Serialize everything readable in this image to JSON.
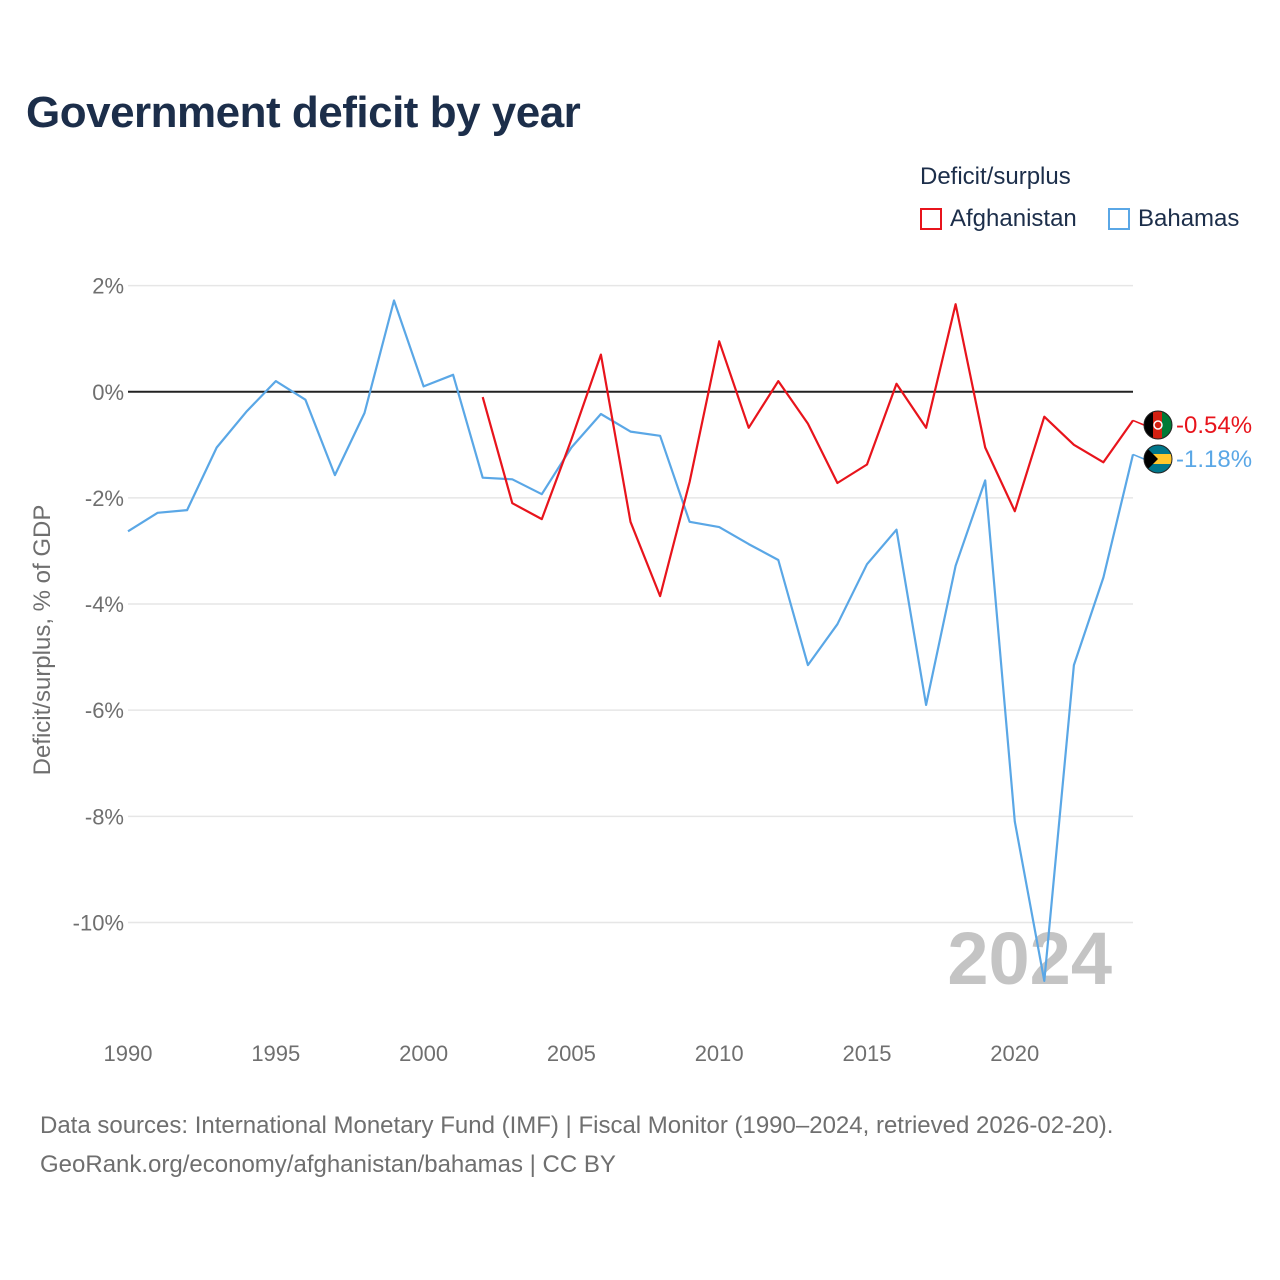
{
  "title": "Government deficit by year",
  "legend": {
    "title": "Deficit/surplus",
    "items": [
      {
        "label": "Afghanistan",
        "color": "#e8141c"
      },
      {
        "label": "Bahamas",
        "color": "#5aa7e6"
      }
    ]
  },
  "year_watermark": "2024",
  "footer": {
    "line1": "Data sources: International Monetary Fund (IMF) | Fiscal Monitor (1990–2024, retrieved 2026-02-20).",
    "line2": "GeoRank.org/economy/afghanistan/bahamas | CC BY"
  },
  "chart_data": {
    "type": "line",
    "title": "Government deficit by year",
    "xlabel": "",
    "ylabel": "Deficit/surplus, % of GDP",
    "xlim": [
      1990,
      2024
    ],
    "ylim": [
      -11.8,
      2.2
    ],
    "x_ticks": [
      1990,
      1995,
      2000,
      2005,
      2010,
      2015,
      2020
    ],
    "x_tick_labels": [
      "1990",
      "1995",
      "2000",
      "2005",
      "2010",
      "2015",
      "2020"
    ],
    "y_ticks": [
      2,
      0,
      -2,
      -4,
      -6,
      -8,
      -10
    ],
    "y_tick_labels": [
      "2%",
      "0%",
      "-2%",
      "-4%",
      "-6%",
      "-8%",
      "-10%"
    ],
    "grid": true,
    "zero_line": true,
    "legend_position": "top-right",
    "series": [
      {
        "name": "Afghanistan",
        "color": "#e8141c",
        "end_label": "-0.54%",
        "points": [
          [
            2002,
            -0.1
          ],
          [
            2003,
            -2.1
          ],
          [
            2004,
            -2.4
          ],
          [
            2005,
            -0.9
          ],
          [
            2006,
            0.7
          ],
          [
            2007,
            -2.45
          ],
          [
            2008,
            -3.85
          ],
          [
            2009,
            -1.7
          ],
          [
            2010,
            0.95
          ],
          [
            2011,
            -0.68
          ],
          [
            2012,
            0.2
          ],
          [
            2013,
            -0.6
          ],
          [
            2014,
            -1.72
          ],
          [
            2015,
            -1.37
          ],
          [
            2016,
            0.15
          ],
          [
            2017,
            -0.68
          ],
          [
            2018,
            1.65
          ],
          [
            2019,
            -1.05
          ],
          [
            2020,
            -2.25
          ],
          [
            2021,
            -0.47
          ],
          [
            2022,
            -1.0
          ],
          [
            2023,
            -1.33
          ],
          [
            2024,
            -0.54
          ]
        ]
      },
      {
        "name": "Bahamas",
        "color": "#5aa7e6",
        "end_label": "-1.18%",
        "points": [
          [
            1990,
            -2.63
          ],
          [
            1991,
            -2.28
          ],
          [
            1992,
            -2.23
          ],
          [
            1993,
            -1.05
          ],
          [
            1994,
            -0.38
          ],
          [
            1995,
            0.2
          ],
          [
            1996,
            -0.15
          ],
          [
            1997,
            -1.57
          ],
          [
            1998,
            -0.4
          ],
          [
            1999,
            1.72
          ],
          [
            2000,
            0.1
          ],
          [
            2001,
            0.32
          ],
          [
            2002,
            -1.62
          ],
          [
            2003,
            -1.65
          ],
          [
            2004,
            -1.93
          ],
          [
            2005,
            -1.05
          ],
          [
            2006,
            -0.42
          ],
          [
            2007,
            -0.75
          ],
          [
            2008,
            -0.83
          ],
          [
            2009,
            -2.45
          ],
          [
            2010,
            -2.55
          ],
          [
            2011,
            -2.87
          ],
          [
            2012,
            -3.17
          ],
          [
            2013,
            -5.15
          ],
          [
            2014,
            -4.38
          ],
          [
            2015,
            -3.25
          ],
          [
            2016,
            -2.6
          ],
          [
            2017,
            -5.9
          ],
          [
            2018,
            -3.28
          ],
          [
            2019,
            -1.67
          ],
          [
            2020,
            -8.1
          ],
          [
            2021,
            -11.1
          ],
          [
            2022,
            -5.15
          ],
          [
            2023,
            -3.5
          ],
          [
            2024,
            -1.18
          ]
        ]
      }
    ]
  }
}
